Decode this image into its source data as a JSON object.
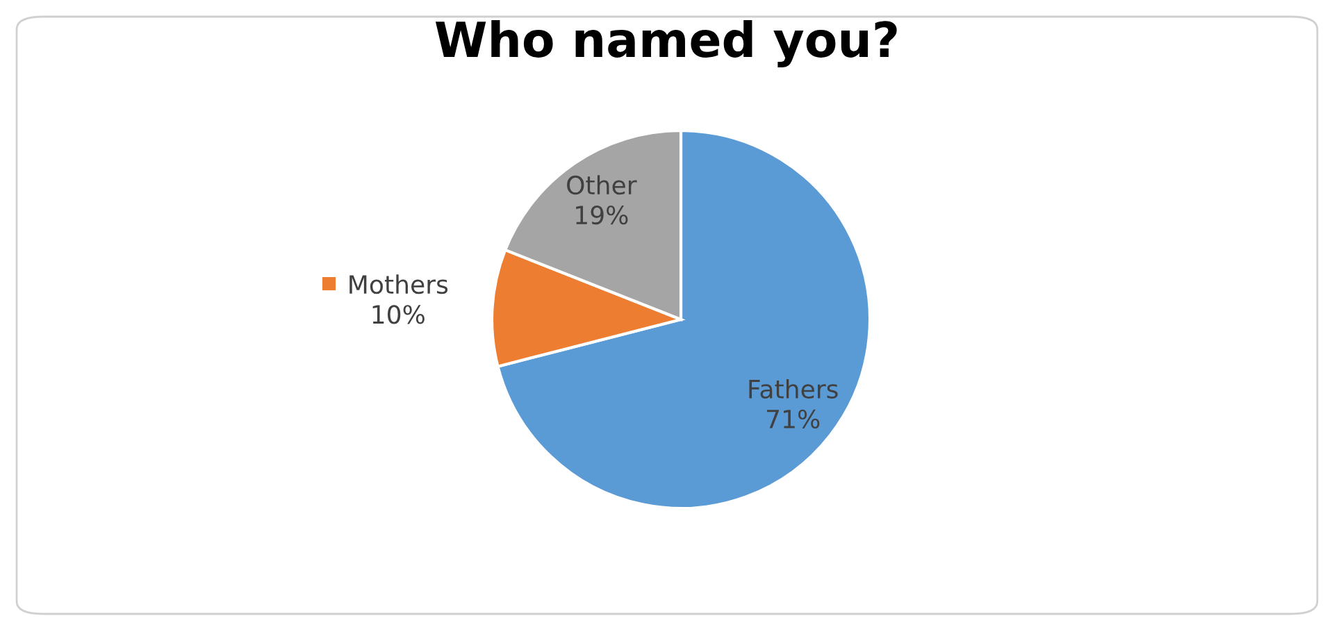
{
  "chart_data": {
    "type": "pie",
    "title": "Who named you?",
    "categories": [
      "Fathers",
      "Mothers",
      "Other"
    ],
    "values": [
      71,
      10,
      19
    ],
    "colors": [
      "#5b9bd5",
      "#ed7d31",
      "#a5a5a5"
    ],
    "value_labels": [
      "71%",
      "10%",
      "19%"
    ]
  }
}
